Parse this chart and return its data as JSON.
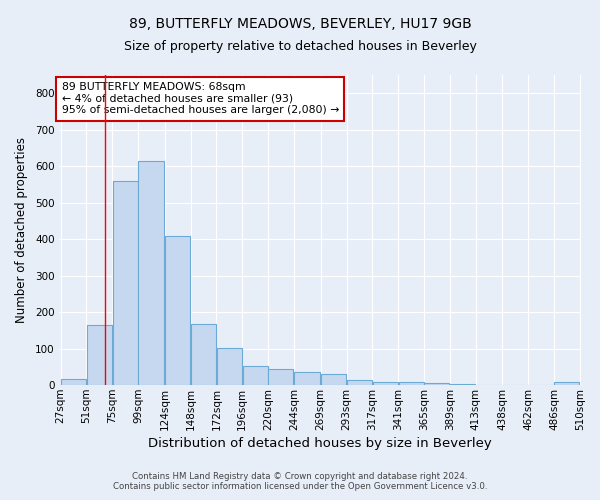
{
  "title1": "89, BUTTERFLY MEADOWS, BEVERLEY, HU17 9GB",
  "title2": "Size of property relative to detached houses in Beverley",
  "xlabel": "Distribution of detached houses by size in Beverley",
  "ylabel": "Number of detached properties",
  "footnote1": "Contains HM Land Registry data © Crown copyright and database right 2024.",
  "footnote2": "Contains public sector information licensed under the Open Government Licence v3.0.",
  "bin_labels": [
    "27sqm",
    "51sqm",
    "75sqm",
    "99sqm",
    "124sqm",
    "148sqm",
    "172sqm",
    "196sqm",
    "220sqm",
    "244sqm",
    "269sqm",
    "293sqm",
    "317sqm",
    "341sqm",
    "365sqm",
    "389sqm",
    "413sqm",
    "438sqm",
    "462sqm",
    "486sqm",
    "510sqm"
  ],
  "bar_heights": [
    18,
    165,
    560,
    615,
    410,
    168,
    102,
    52,
    43,
    35,
    30,
    15,
    10,
    8,
    6,
    4,
    0,
    0,
    0,
    8,
    0
  ],
  "bar_color": "#c5d8f0",
  "bar_edge_color": "#6aaad4",
  "property_size_sqm": 68,
  "annotation_text": "89 BUTTERFLY MEADOWS: 68sqm\n← 4% of detached houses are smaller (93)\n95% of semi-detached houses are larger (2,080) →",
  "annotation_box_color": "#ffffff",
  "annotation_box_edge": "#cc0000",
  "bin_edges_sqm": [
    27,
    51,
    75,
    99,
    124,
    148,
    172,
    196,
    220,
    244,
    269,
    293,
    317,
    341,
    365,
    389,
    413,
    438,
    462,
    486,
    510
  ],
  "ylim": [
    0,
    850
  ],
  "yticks": [
    0,
    100,
    200,
    300,
    400,
    500,
    600,
    700,
    800
  ],
  "background_color": "#e8eef8",
  "plot_bg_color": "#e8eef8",
  "grid_color": "#ffffff",
  "title1_fontsize": 10,
  "title2_fontsize": 9,
  "xlabel_fontsize": 9.5,
  "ylabel_fontsize": 8.5,
  "tick_fontsize": 7.5,
  "footnote_fontsize": 6.2,
  "annot_fontsize": 7.8
}
